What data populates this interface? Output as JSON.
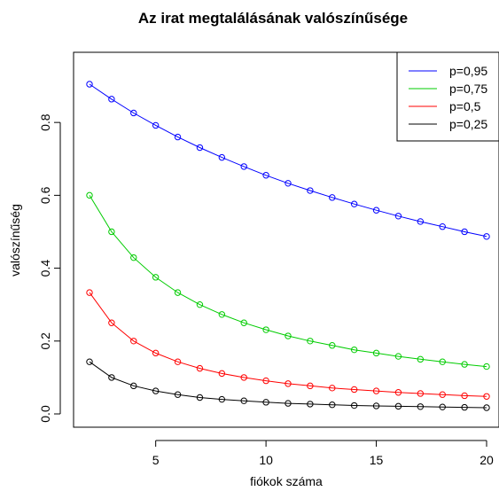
{
  "chart_data": {
    "type": "line",
    "title": "Az irat megtalálásának valószínűsége",
    "xlabel": "fiókok száma",
    "ylabel": "valószínűség",
    "x": [
      2,
      3,
      4,
      5,
      6,
      7,
      8,
      9,
      10,
      11,
      12,
      13,
      14,
      15,
      16,
      17,
      18,
      19,
      20
    ],
    "xlim": [
      2,
      20
    ],
    "ylim": [
      0,
      0.905
    ],
    "xticks": [
      "5",
      "10",
      "15",
      "20"
    ],
    "yticks": [
      "0.0",
      "0.2",
      "0.4",
      "0.6",
      "0.8"
    ],
    "grid": false,
    "legend_position": "top-right",
    "series": [
      {
        "name": "p=0,95",
        "color": "#0000ff",
        "values": [
          0.905,
          0.864,
          0.826,
          0.792,
          0.76,
          0.731,
          0.704,
          0.679,
          0.655,
          0.633,
          0.613,
          0.594,
          0.576,
          0.559,
          0.543,
          0.528,
          0.514,
          0.5,
          0.487
        ]
      },
      {
        "name": "p=0,75",
        "color": "#00cc00",
        "values": [
          0.6,
          0.5,
          0.429,
          0.375,
          0.333,
          0.3,
          0.273,
          0.25,
          0.231,
          0.214,
          0.2,
          0.188,
          0.176,
          0.167,
          0.158,
          0.15,
          0.143,
          0.136,
          0.13
        ]
      },
      {
        "name": "p=0,5",
        "color": "#ff0000",
        "values": [
          0.333,
          0.25,
          0.2,
          0.167,
          0.143,
          0.125,
          0.111,
          0.1,
          0.091,
          0.083,
          0.077,
          0.071,
          0.067,
          0.063,
          0.059,
          0.056,
          0.053,
          0.05,
          0.048
        ]
      },
      {
        "name": "p=0,25",
        "color": "#000000",
        "values": [
          0.143,
          0.1,
          0.077,
          0.063,
          0.053,
          0.045,
          0.04,
          0.036,
          0.032,
          0.029,
          0.027,
          0.025,
          0.023,
          0.022,
          0.021,
          0.02,
          0.019,
          0.018,
          0.017
        ]
      }
    ]
  }
}
